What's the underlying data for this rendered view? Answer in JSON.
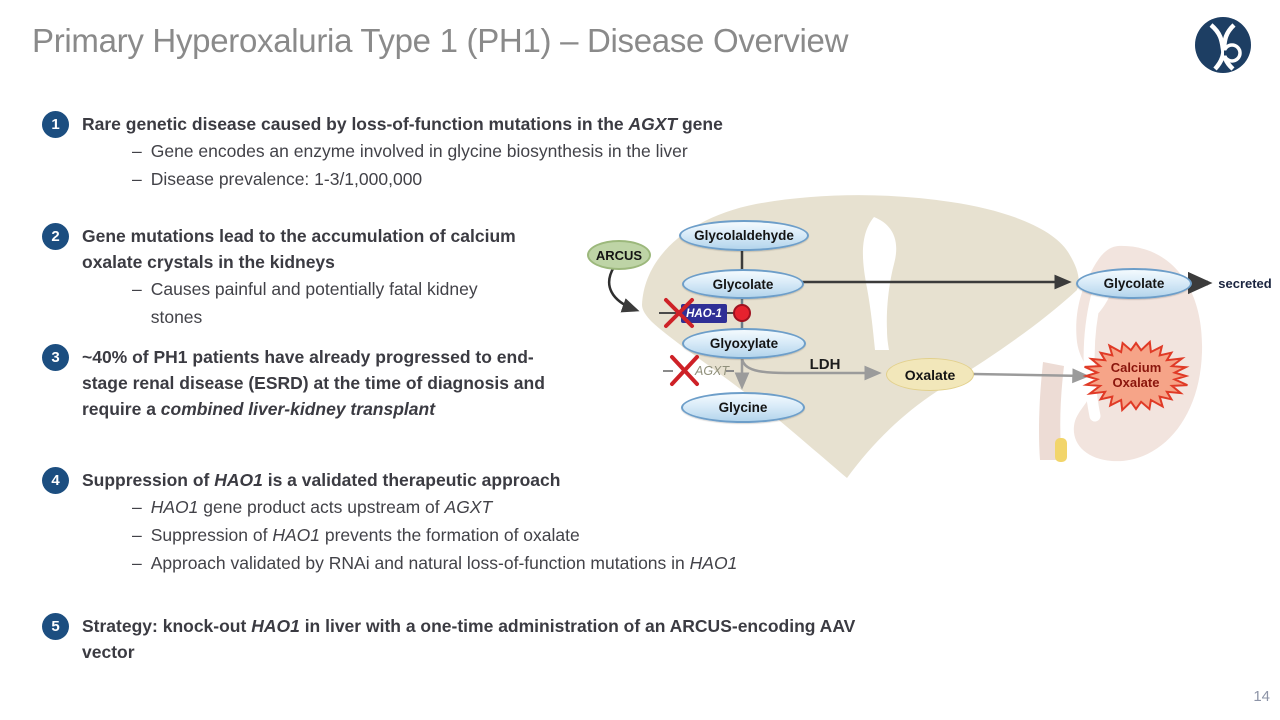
{
  "slide": {
    "title": "Primary Hyperoxaluria Type 1 (PH1) – Disease Overview",
    "page_number": "14"
  },
  "misc": {
    "dash": "–"
  },
  "bullets": [
    {
      "num": "1",
      "main": [
        {
          "t": "Rare genetic disease caused by loss-of-function mutations in the "
        },
        {
          "t": "AGXT",
          "i": true
        },
        {
          "t": " gene"
        }
      ],
      "subs": [
        [
          {
            "t": "Gene encodes an enzyme involved in glycine biosynthesis in the liver"
          }
        ],
        [
          {
            "t": "Disease prevalence: 1-3/1,000,000"
          }
        ]
      ]
    },
    {
      "num": "2",
      "main": [
        {
          "t": "Gene mutations lead to the accumulation of calcium oxalate crystals in the kidneys"
        }
      ],
      "subs": [
        [
          {
            "t": "Causes painful and potentially fatal kidney stones"
          }
        ]
      ]
    },
    {
      "num": "3",
      "main": [
        {
          "t": "~40% of PH1 patients have already progressed to end-stage renal disease (ESRD) at the time of diagnosis and require a "
        },
        {
          "t": "combined liver-kidney transplant",
          "i": true
        }
      ],
      "subs": []
    },
    {
      "num": "4",
      "main": [
        {
          "t": "Suppression of "
        },
        {
          "t": "HAO1",
          "i": true
        },
        {
          "t": " is a validated therapeutic approach"
        }
      ],
      "subs": [
        [
          {
            "t": "HAO1",
            "i": true
          },
          {
            "t": " gene product acts upstream of "
          },
          {
            "t": "AGXT",
            "i": true
          }
        ],
        [
          {
            "t": "Suppression of "
          },
          {
            "t": "HAO1",
            "i": true
          },
          {
            "t": " prevents the formation of oxalate"
          }
        ],
        [
          {
            "t": "Approach validated by RNAi and natural loss-of-function mutations in "
          },
          {
            "t": "HAO1",
            "i": true
          }
        ]
      ]
    },
    {
      "num": "5",
      "main": [
        {
          "t": "Strategy: knock-out "
        },
        {
          "t": "HAO1",
          "i": true
        },
        {
          "t": " in liver with a one-time administration of an ARCUS-encoding AAV vector"
        }
      ],
      "subs": []
    }
  ],
  "diagram": {
    "nodes": {
      "arcus": "ARCUS",
      "glycolaldehyde": "Glycolaldehyde",
      "glycolate_liver": "Glycolate",
      "hao1": "HAO-1",
      "glyoxylate": "Glyoxylate",
      "agxt": "AGXT",
      "ldh": "LDH",
      "glycine": "Glycine",
      "oxalate": "Oxalate",
      "glycolate_kidney": "Glycolate",
      "calcium_oxalate_line1": "Calcium",
      "calcium_oxalate_line2": "Oxalate",
      "secreted": "secreted"
    },
    "colors": {
      "number_circle_blue": "#1C4E80",
      "node_blue_border": "#6D9EC9",
      "node_blue_fill": "#D9EBF8",
      "blocked_red": "#CE2127",
      "stop_dot_red": "#E6222E",
      "hao1_box_indigo": "#2F2F96",
      "arcus_green": "#BED4A6",
      "oxalate_tan": "#F2E7BA",
      "calcium_oxalate_fill": "#F6A488",
      "calcium_oxalate_border": "#E03A26",
      "liver_tan": "#E7E1D0",
      "kidney_pink": "#F2E4DE",
      "title_gray": "#8A8A8A"
    }
  }
}
